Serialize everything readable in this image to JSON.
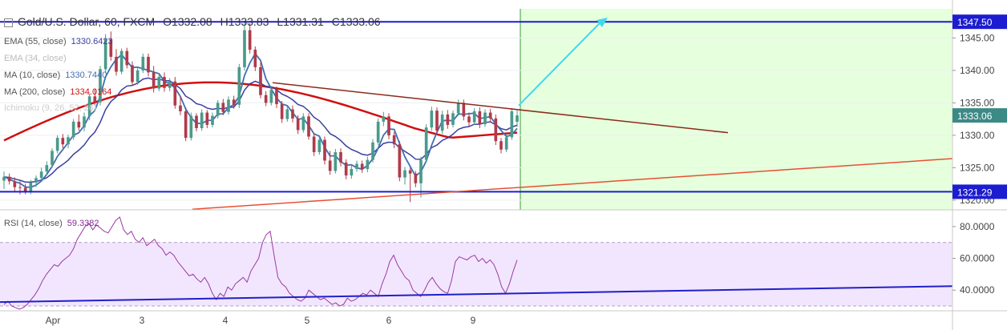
{
  "header": {
    "symbol": "Gold/U.S. Dollar, 60, FXCM",
    "open": "O1332.08",
    "high": "H1333.83",
    "low": "L1331.31",
    "close": "C1333.06"
  },
  "indicators": [
    {
      "label": "EMA (55, close)",
      "value": "1330.6423",
      "color": "#3a3f9e"
    },
    {
      "label": "EMA (34, close)",
      "value": "",
      "color": "#bbbbbb"
    },
    {
      "label": "MA (10, close)",
      "value": "1330.7440",
      "color": "#3f6fb0"
    },
    {
      "label": "MA (200, close)",
      "value": "1334.0164",
      "color": "#d01010"
    },
    {
      "label": "Ichimoku (9, 26, 52, 26)",
      "value": "",
      "color": "#cccccc"
    }
  ],
  "rsi": {
    "label": "RSI (14, close)",
    "value": "59.3382",
    "color": "#8a2a9a"
  },
  "price_axis": {
    "ticks": [
      "1345.00",
      "1340.00",
      "1335.00",
      "1330.00",
      "1325.00",
      "1320.00"
    ],
    "labels": [
      {
        "text": "1347.50",
        "value": 1347.5,
        "color": "#1c1cd0"
      },
      {
        "text": "1333.06",
        "value": 1333.06,
        "color": "#3c8a86"
      },
      {
        "text": "1321.29",
        "value": 1321.29,
        "color": "#1c1cd0"
      }
    ]
  },
  "rsi_axis": {
    "ticks": [
      "80.0000",
      "60.0000",
      "40.0000"
    ]
  },
  "time_axis": {
    "ticks": [
      "Apr",
      "3",
      "4",
      "5",
      "6",
      "9"
    ]
  },
  "colors": {
    "up": "#4a9a8a",
    "down": "#b03a4a",
    "forecast_fill": "#e6ffdd",
    "rsi_fill": "#f2e6ff",
    "hline": "#1c1cd0",
    "arrow": "#40d8f0",
    "trend_upper": "#8b2a1a",
    "trend_lower": "#e85030"
  },
  "chart_data": {
    "type": "candlestick",
    "y_range": [
      1318.5,
      1349.5
    ],
    "rsi_range": [
      27,
      88
    ],
    "horizontal_lines": [
      1347.5,
      1321.29
    ],
    "ohlc": [
      [
        1323.0,
        1324.4,
        1321.7,
        1323.6
      ],
      [
        1323.6,
        1324.1,
        1322.4,
        1322.9
      ],
      [
        1322.9,
        1323.5,
        1321.3,
        1322.0
      ],
      [
        1322.0,
        1322.9,
        1320.9,
        1321.9
      ],
      [
        1321.9,
        1322.5,
        1320.9,
        1321.3
      ],
      [
        1321.3,
        1323.1,
        1320.9,
        1322.7
      ],
      [
        1322.7,
        1323.8,
        1322.0,
        1323.4
      ],
      [
        1323.4,
        1325.0,
        1322.8,
        1324.4
      ],
      [
        1324.4,
        1326.0,
        1323.8,
        1325.4
      ],
      [
        1325.4,
        1328.0,
        1325.0,
        1327.6
      ],
      [
        1327.6,
        1330.0,
        1327.2,
        1329.6
      ],
      [
        1329.6,
        1330.2,
        1328.0,
        1328.6
      ],
      [
        1328.6,
        1330.1,
        1328.0,
        1329.7
      ],
      [
        1329.7,
        1332.5,
        1329.3,
        1332.1
      ],
      [
        1332.1,
        1333.2,
        1330.7,
        1331.2
      ],
      [
        1331.2,
        1333.5,
        1330.6,
        1332.9
      ],
      [
        1332.9,
        1336.4,
        1332.3,
        1336.0
      ],
      [
        1336.0,
        1337.2,
        1334.6,
        1335.1
      ],
      [
        1335.1,
        1340.7,
        1334.6,
        1340.2
      ],
      [
        1340.2,
        1345.6,
        1339.6,
        1344.8
      ],
      [
        1344.8,
        1346.0,
        1341.5,
        1342.1
      ],
      [
        1342.1,
        1343.3,
        1339.2,
        1339.8
      ],
      [
        1339.8,
        1343.4,
        1339.4,
        1343.0
      ],
      [
        1343.0,
        1343.5,
        1340.3,
        1340.8
      ],
      [
        1340.8,
        1341.4,
        1337.6,
        1338.2
      ],
      [
        1338.2,
        1340.5,
        1337.8,
        1340.0
      ],
      [
        1340.0,
        1342.6,
        1339.6,
        1342.1
      ],
      [
        1342.1,
        1342.6,
        1339.1,
        1339.7
      ],
      [
        1339.7,
        1340.7,
        1336.6,
        1337.2
      ],
      [
        1337.2,
        1339.5,
        1336.8,
        1339.0
      ],
      [
        1339.0,
        1339.7,
        1336.7,
        1337.3
      ],
      [
        1337.3,
        1338.8,
        1336.8,
        1338.3
      ],
      [
        1338.3,
        1339.0,
        1334.1,
        1334.6
      ],
      [
        1334.6,
        1336.1,
        1333.1,
        1333.7
      ],
      [
        1333.7,
        1334.3,
        1329.1,
        1329.6
      ],
      [
        1329.6,
        1333.5,
        1329.2,
        1333.0
      ],
      [
        1333.0,
        1333.4,
        1330.6,
        1331.1
      ],
      [
        1331.1,
        1334.0,
        1330.7,
        1333.5
      ],
      [
        1333.5,
        1333.9,
        1331.1,
        1331.6
      ],
      [
        1331.6,
        1333.5,
        1331.2,
        1333.0
      ],
      [
        1333.0,
        1335.4,
        1332.6,
        1335.0
      ],
      [
        1335.0,
        1335.6,
        1333.1,
        1333.6
      ],
      [
        1333.6,
        1336.0,
        1333.2,
        1335.5
      ],
      [
        1335.5,
        1336.1,
        1334.1,
        1334.7
      ],
      [
        1334.7,
        1341.0,
        1334.2,
        1340.5
      ],
      [
        1340.5,
        1347.5,
        1340.0,
        1346.2
      ],
      [
        1346.2,
        1347.3,
        1342.6,
        1343.2
      ],
      [
        1343.2,
        1343.7,
        1339.9,
        1340.5
      ],
      [
        1340.5,
        1341.4,
        1335.7,
        1336.2
      ],
      [
        1336.2,
        1336.8,
        1334.5,
        1335.0
      ],
      [
        1335.0,
        1337.4,
        1334.6,
        1337.0
      ],
      [
        1337.0,
        1337.5,
        1334.2,
        1334.8
      ],
      [
        1334.8,
        1335.3,
        1331.9,
        1332.5
      ],
      [
        1332.5,
        1334.5,
        1332.1,
        1334.0
      ],
      [
        1334.0,
        1334.6,
        1332.0,
        1332.6
      ],
      [
        1332.6,
        1333.1,
        1330.2,
        1330.8
      ],
      [
        1330.8,
        1333.4,
        1330.4,
        1332.9
      ],
      [
        1332.9,
        1333.4,
        1329.3,
        1329.8
      ],
      [
        1329.8,
        1330.3,
        1326.8,
        1327.4
      ],
      [
        1327.4,
        1329.8,
        1327.0,
        1329.3
      ],
      [
        1329.3,
        1329.8,
        1325.5,
        1326.1
      ],
      [
        1326.1,
        1327.6,
        1323.9,
        1324.5
      ],
      [
        1324.5,
        1327.9,
        1324.1,
        1327.4
      ],
      [
        1327.4,
        1328.0,
        1325.2,
        1325.8
      ],
      [
        1325.8,
        1326.3,
        1323.2,
        1323.8
      ],
      [
        1323.8,
        1325.3,
        1323.3,
        1324.8
      ],
      [
        1324.8,
        1326.1,
        1324.4,
        1325.6
      ],
      [
        1325.6,
        1326.1,
        1324.2,
        1324.8
      ],
      [
        1324.8,
        1326.7,
        1324.3,
        1326.2
      ],
      [
        1326.2,
        1329.4,
        1325.8,
        1328.9
      ],
      [
        1328.9,
        1332.6,
        1328.5,
        1332.1
      ],
      [
        1332.1,
        1333.6,
        1331.4,
        1332.9
      ],
      [
        1332.9,
        1333.4,
        1329.4,
        1330.0
      ],
      [
        1330.0,
        1330.5,
        1328.0,
        1328.6
      ],
      [
        1328.6,
        1329.1,
        1322.9,
        1323.5
      ],
      [
        1323.5,
        1325.1,
        1322.4,
        1324.6
      ],
      [
        1324.6,
        1325.0,
        1319.7,
        1324.1
      ],
      [
        1324.1,
        1324.5,
        1322.0,
        1322.6
      ],
      [
        1322.6,
        1326.7,
        1320.4,
        1326.2
      ],
      [
        1326.2,
        1331.7,
        1325.8,
        1331.2
      ],
      [
        1331.2,
        1334.4,
        1330.7,
        1333.8
      ],
      [
        1333.8,
        1334.3,
        1330.1,
        1330.7
      ],
      [
        1330.7,
        1333.8,
        1330.2,
        1333.2
      ],
      [
        1333.2,
        1333.9,
        1331.0,
        1331.6
      ],
      [
        1331.6,
        1333.8,
        1331.2,
        1333.4
      ],
      [
        1333.4,
        1335.5,
        1333.0,
        1335.0
      ],
      [
        1335.0,
        1335.5,
        1332.3,
        1332.9
      ],
      [
        1332.9,
        1333.5,
        1331.4,
        1332.0
      ],
      [
        1332.0,
        1334.2,
        1331.6,
        1333.7
      ],
      [
        1333.7,
        1334.3,
        1331.1,
        1331.7
      ],
      [
        1331.7,
        1334.0,
        1331.3,
        1333.5
      ],
      [
        1333.5,
        1334.1,
        1332.0,
        1332.6
      ],
      [
        1332.6,
        1333.2,
        1328.5,
        1329.1
      ],
      [
        1329.1,
        1329.6,
        1327.2,
        1327.8
      ],
      [
        1327.8,
        1330.2,
        1327.4,
        1329.7
      ],
      [
        1329.7,
        1334.2,
        1329.3,
        1333.7
      ],
      [
        1332.08,
        1333.83,
        1331.31,
        1333.06
      ]
    ],
    "rsi_values": [
      31,
      33,
      30,
      29,
      28,
      29,
      31,
      34,
      37,
      41,
      46,
      50,
      53,
      56,
      55,
      58,
      60,
      62,
      66,
      72,
      76,
      80,
      82,
      78,
      81,
      79,
      77,
      76,
      80,
      84,
      86,
      78,
      75,
      77,
      72,
      70,
      73,
      68,
      70,
      72,
      68,
      66,
      62,
      64,
      62,
      58,
      55,
      52,
      49,
      50,
      47,
      45,
      48,
      44,
      38,
      34,
      38,
      36,
      42,
      40,
      44,
      46,
      48,
      45,
      52,
      56,
      60,
      70,
      75,
      77,
      62,
      48,
      44,
      42,
      38,
      36,
      34,
      33,
      35,
      40,
      38,
      36,
      34,
      35,
      33,
      31,
      32,
      30,
      31,
      35,
      33,
      34,
      36,
      38,
      37,
      40,
      38,
      36,
      44,
      50,
      58,
      62,
      56,
      52,
      48,
      46,
      40,
      38,
      36,
      40,
      45,
      48,
      44,
      41,
      39,
      38,
      46,
      58,
      61,
      60,
      59,
      61,
      62,
      58,
      60,
      57,
      59,
      56,
      50,
      42,
      38,
      44,
      52,
      59
    ]
  }
}
